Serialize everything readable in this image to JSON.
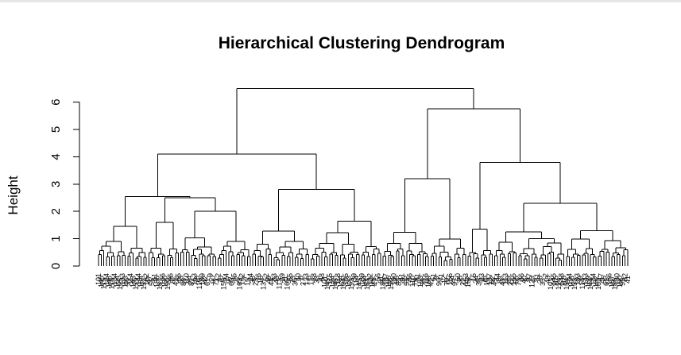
{
  "chart_data": {
    "type": "dendrogram",
    "title": "Hierarchical Clustering Dendrogram",
    "ylabel": "Height",
    "xlabel": "",
    "yticks": [
      0,
      1,
      2,
      3,
      4,
      5,
      6
    ],
    "ylim": [
      0,
      6.6
    ],
    "leaf_count": 200,
    "merges": [
      {
        "id": "root",
        "height": 6.5,
        "left": "A",
        "right": "B"
      },
      {
        "id": "A",
        "height": 4.1,
        "left": "A1",
        "right": "A2"
      },
      {
        "id": "A1",
        "height": 2.55,
        "left": "A1a",
        "right": "A1b"
      },
      {
        "id": "A1a",
        "height": 1.45
      },
      {
        "id": "A1b",
        "height": 1.6
      },
      {
        "id": "A2",
        "height": 2.0
      },
      {
        "id": "A3",
        "height": 2.8
      },
      {
        "id": "B",
        "height": 5.75,
        "left": "B1",
        "right": "B2"
      },
      {
        "id": "B1",
        "height": 3.2
      },
      {
        "id": "B2",
        "height": 3.8,
        "left": "B2a",
        "right": "B2b"
      },
      {
        "id": "B2a",
        "height": 1.35
      },
      {
        "id": "B2b",
        "height": 2.3
      }
    ],
    "leaf_labels_visible": [
      "101",
      "145",
      "115",
      "124",
      "148",
      "118",
      "134",
      "104",
      "105",
      "133",
      "193",
      "39",
      "114",
      "143",
      "139",
      "144",
      "184",
      "132",
      "182",
      "47",
      "56",
      "61",
      "186",
      "187",
      "186",
      "130",
      "190",
      "95",
      "82",
      "41",
      "85",
      "53",
      "86",
      "110",
      "74",
      "81",
      "153",
      "78",
      "116",
      "199",
      "42",
      "61",
      "9",
      "90",
      "71",
      "12",
      "70",
      "156",
      "24",
      "97",
      "60",
      "35",
      "22",
      "163",
      "162",
      "7",
      "15",
      "24",
      "38",
      "23",
      "76",
      "16",
      "137",
      "52",
      "49",
      "44",
      "83",
      "43",
      "113",
      "29",
      "21",
      "165",
      "55",
      "73",
      "36",
      "40",
      "8",
      "27",
      "123",
      "6",
      "11",
      "28",
      "33",
      "2",
      "48"
    ]
  }
}
